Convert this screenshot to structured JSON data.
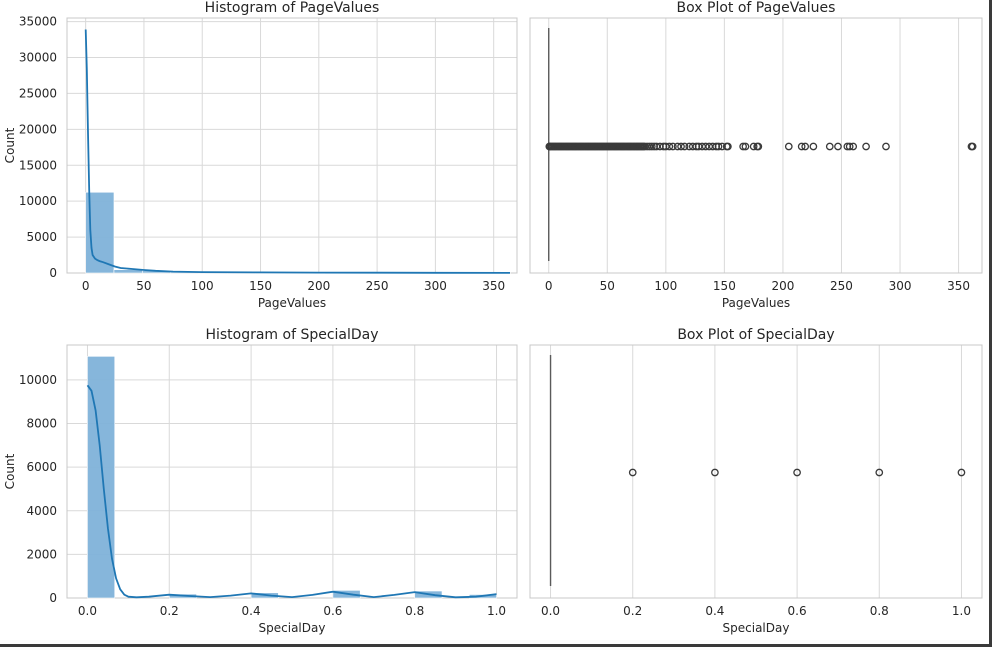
{
  "chart_data": [
    {
      "type": "histogram",
      "title": "Histogram of PageValues",
      "xlabel": "PageValues",
      "ylabel": "Count",
      "xlim": [
        -16,
        370
      ],
      "ylim": [
        0,
        35500
      ],
      "xticks": [
        0,
        50,
        100,
        150,
        200,
        250,
        300,
        350
      ],
      "yticks": [
        0,
        5000,
        10000,
        15000,
        20000,
        25000,
        30000,
        35000
      ],
      "grid": true,
      "bin_edges": [
        0,
        24.3,
        48.6,
        72.9,
        97.2,
        121.5,
        145.8,
        170.1,
        194.4,
        218.7,
        243.0,
        267.3,
        291.6,
        315.9,
        340.2,
        364.5
      ],
      "counts": [
        11240,
        460,
        330,
        120,
        60,
        30,
        15,
        8,
        5,
        4,
        3,
        2,
        1,
        0,
        2
      ],
      "kde": {
        "x": [
          0,
          1,
          2,
          3,
          4,
          5,
          6,
          8,
          10,
          12,
          15,
          20,
          25,
          30,
          40,
          50,
          60,
          75,
          100,
          150,
          200,
          250,
          300,
          364
        ],
        "y": [
          33900,
          28500,
          19500,
          11500,
          6000,
          3500,
          2500,
          2000,
          1800,
          1650,
          1500,
          1200,
          900,
          700,
          550,
          420,
          300,
          200,
          120,
          80,
          60,
          40,
          30,
          20
        ]
      }
    },
    {
      "type": "box",
      "title": "Box Plot of PageValues",
      "xlabel": "PageValues",
      "xlim": [
        -16,
        370
      ],
      "xticks": [
        0,
        50,
        100,
        150,
        200,
        250,
        300,
        350
      ],
      "grid": true,
      "box": {
        "q1": 0,
        "median": 0,
        "q3": 0,
        "whisker_low": 0,
        "whisker_high": 0
      },
      "outliers": [
        0.5,
        1,
        2,
        3,
        4,
        5,
        6,
        7,
        8,
        9,
        10,
        11,
        12,
        13,
        14,
        15,
        16,
        17,
        18,
        19,
        20,
        21,
        22,
        23,
        24,
        25,
        26,
        27,
        28,
        29,
        30,
        31,
        32,
        33,
        34,
        35,
        36,
        37,
        38,
        39,
        40,
        41,
        42,
        43,
        44,
        45,
        46,
        47,
        48,
        49,
        50,
        51,
        52,
        53,
        54,
        55,
        56,
        57,
        58,
        59,
        60,
        61,
        62,
        63,
        64,
        65,
        66,
        67,
        68,
        69,
        70,
        71,
        72,
        73,
        74,
        75,
        76,
        77,
        78,
        79,
        80,
        81,
        82,
        84,
        86,
        88,
        90,
        92,
        95,
        98,
        100,
        103,
        106,
        110,
        113,
        116,
        120,
        123,
        126,
        128,
        131,
        134,
        137,
        140,
        143,
        145,
        148,
        152,
        153,
        166,
        168,
        175,
        178,
        179,
        205,
        216,
        219,
        226,
        240,
        247,
        255,
        257,
        260,
        271,
        288,
        361,
        362
      ]
    },
    {
      "type": "histogram",
      "title": "Histogram of SpecialDay",
      "xlabel": "SpecialDay",
      "ylabel": "Count",
      "xlim": [
        -0.05,
        1.05
      ],
      "ylim": [
        0,
        11600
      ],
      "xticks": [
        0.0,
        0.2,
        0.4,
        0.6,
        0.8,
        1.0
      ],
      "xtick_labels": [
        "0.0",
        "0.2",
        "0.4",
        "0.6",
        "0.8",
        "1.0"
      ],
      "yticks": [
        0,
        2000,
        4000,
        6000,
        8000,
        10000
      ],
      "grid": true,
      "bin_edges": [
        0,
        0.0667,
        0.1333,
        0.2,
        0.2667,
        0.3333,
        0.4,
        0.4667,
        0.5333,
        0.6,
        0.6667,
        0.7333,
        0.8,
        0.8667,
        0.9333,
        1.0
      ],
      "counts": [
        11080,
        0,
        0,
        180,
        0,
        0,
        240,
        0,
        0,
        350,
        0,
        0,
        320,
        0,
        160
      ],
      "kde": {
        "x": [
          0,
          0.01,
          0.02,
          0.03,
          0.04,
          0.05,
          0.06,
          0.07,
          0.08,
          0.09,
          0.1,
          0.12,
          0.15,
          0.2,
          0.25,
          0.3,
          0.35,
          0.4,
          0.45,
          0.5,
          0.55,
          0.6,
          0.65,
          0.7,
          0.75,
          0.8,
          0.85,
          0.9,
          0.95,
          1.0
        ],
        "y": [
          9750,
          9500,
          8600,
          7000,
          5000,
          3200,
          1800,
          900,
          400,
          150,
          60,
          30,
          60,
          150,
          90,
          40,
          110,
          210,
          110,
          40,
          140,
          290,
          150,
          40,
          140,
          270,
          130,
          30,
          60,
          180
        ]
      }
    },
    {
      "type": "box",
      "title": "Box Plot of SpecialDay",
      "xlabel": "SpecialDay",
      "xlim": [
        -0.05,
        1.05
      ],
      "xticks": [
        0.0,
        0.2,
        0.4,
        0.6,
        0.8,
        1.0
      ],
      "xtick_labels": [
        "0.0",
        "0.2",
        "0.4",
        "0.6",
        "0.8",
        "1.0"
      ],
      "grid": true,
      "box": {
        "q1": 0,
        "median": 0,
        "q3": 0,
        "whisker_low": 0,
        "whisker_high": 0
      },
      "outliers": [
        0.2,
        0.4,
        0.6,
        0.8,
        1.0
      ]
    }
  ],
  "colors": {
    "bar_fill": "#7fb2d9",
    "kde_line": "#1f77b4",
    "grid": "#d9d9d9",
    "spine": "#c8c8c8",
    "outlier_edge": "#3a3a3a",
    "whisker": "#5a5a5a"
  }
}
